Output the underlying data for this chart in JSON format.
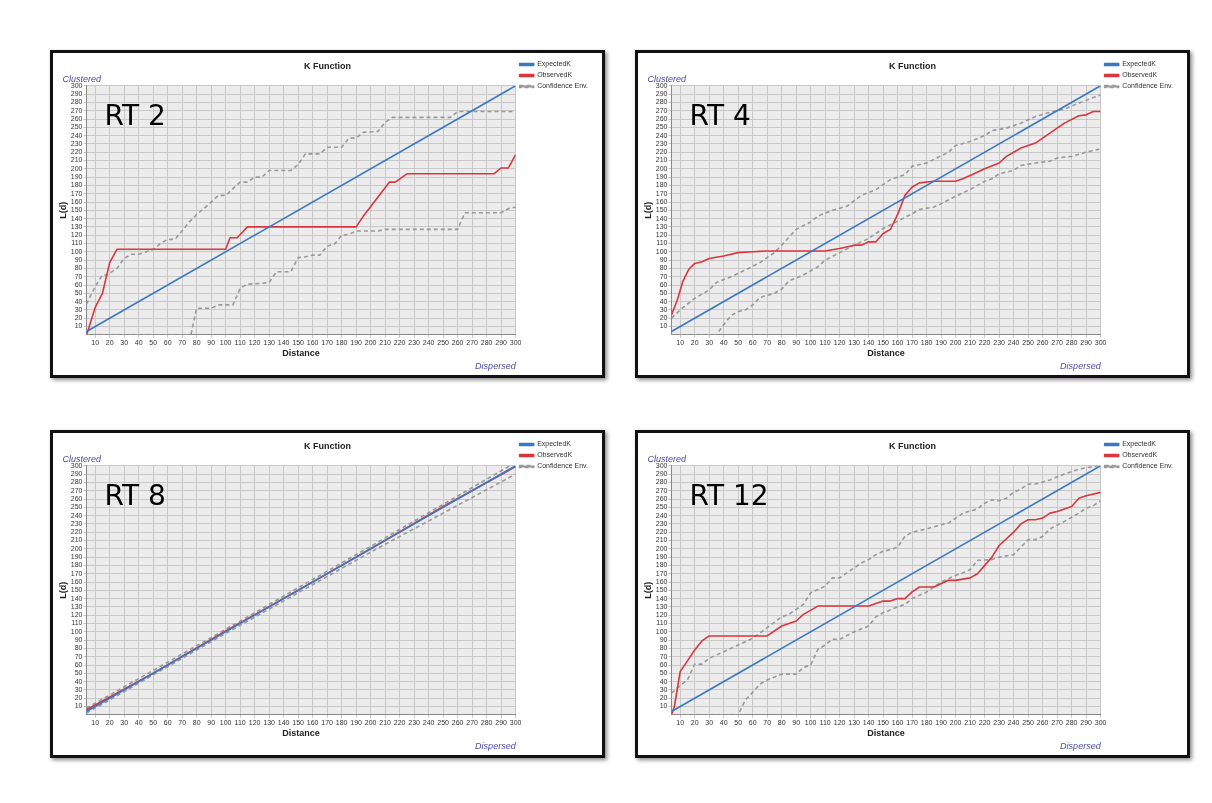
{
  "chart_data": [
    {
      "type": "line",
      "title": "K Function",
      "xlabel": "Distance",
      "ylabel": "L(d)",
      "annotations": [
        "Clustered",
        "Dispersed",
        "RT 2"
      ],
      "xlim": [
        4,
        300
      ],
      "ylim": [
        0,
        300
      ],
      "xticks": [
        10,
        20,
        30,
        40,
        50,
        60,
        70,
        80,
        90,
        100,
        110,
        120,
        130,
        140,
        150,
        160,
        170,
        180,
        190,
        200,
        210,
        220,
        230,
        240,
        250,
        260,
        270,
        280,
        290,
        300
      ],
      "yticks": [
        10,
        20,
        30,
        40,
        50,
        60,
        70,
        80,
        90,
        100,
        110,
        120,
        130,
        140,
        150,
        160,
        170,
        180,
        190,
        200,
        210,
        220,
        230,
        240,
        250,
        260,
        270,
        280,
        290,
        300
      ],
      "grid": true,
      "legend": "top right",
      "series": [
        {
          "name": "ExpectedK",
          "color": "#3b78c4",
          "x": [
            4,
            300
          ],
          "values": [
            4,
            300
          ]
        },
        {
          "name": "ObservedK",
          "color": "#d9363e",
          "x": [
            4,
            5,
            10,
            15,
            20,
            25,
            100,
            103,
            108,
            115,
            190,
            195,
            213,
            217,
            225,
            285,
            290,
            295,
            300
          ],
          "values": [
            0,
            5,
            33,
            50,
            87,
            103,
            103,
            117,
            117,
            130,
            130,
            143,
            184,
            184,
            194,
            194,
            201,
            201,
            217
          ]
        },
        {
          "name": "Confidence Env.",
          "color": "#999999",
          "line_style": "dashed",
          "x": [
            4,
            10,
            15,
            18,
            25,
            30,
            35,
            40,
            50,
            55,
            60,
            65,
            75,
            80,
            85,
            95,
            100,
            110,
            115,
            120,
            125,
            130,
            145,
            150,
            155,
            165,
            170,
            180,
            185,
            190,
            195,
            205,
            210,
            215,
            255,
            260,
            300
          ],
          "values": [
            37,
            58,
            72,
            72,
            80,
            92,
            97,
            97,
            103,
            110,
            115,
            115,
            136,
            145,
            152,
            168,
            168,
            184,
            184,
            190,
            190,
            198,
            198,
            205,
            218,
            218,
            226,
            226,
            237,
            237,
            244,
            245,
            256,
            262,
            262,
            269,
            269
          ]
        },
        {
          "color": "#999999",
          "line_style": "dashed",
          "x": [
            4,
            76,
            80,
            90,
            95,
            105,
            110,
            115,
            125,
            130,
            135,
            145,
            150,
            155,
            160,
            165,
            170,
            175,
            180,
            185,
            190,
            205,
            210,
            260,
            265,
            290,
            295,
            300
          ],
          "values": [
            0,
            0,
            32,
            32,
            36,
            36,
            56,
            61,
            62,
            63,
            76,
            76,
            93,
            94,
            96,
            96,
            107,
            109,
            120,
            121,
            125,
            125,
            127,
            127,
            147,
            147,
            152,
            154
          ]
        }
      ]
    },
    {
      "type": "line",
      "title": "K Function",
      "xlabel": "Distance",
      "ylabel": "L(d)",
      "annotations": [
        "Clustered",
        "Dispersed",
        "RT 4"
      ],
      "xlim": [
        4,
        300
      ],
      "ylim": [
        0,
        300
      ],
      "xticks": [
        10,
        20,
        30,
        40,
        50,
        60,
        70,
        80,
        90,
        100,
        110,
        120,
        130,
        140,
        150,
        160,
        170,
        180,
        190,
        200,
        210,
        220,
        230,
        240,
        250,
        260,
        270,
        280,
        290,
        300
      ],
      "yticks": [
        10,
        20,
        30,
        40,
        50,
        60,
        70,
        80,
        90,
        100,
        110,
        120,
        130,
        140,
        150,
        160,
        170,
        180,
        190,
        200,
        210,
        220,
        230,
        240,
        250,
        260,
        270,
        280,
        290,
        300
      ],
      "grid": true,
      "legend": "top right",
      "series": [
        {
          "name": "ExpectedK",
          "color": "#3b78c4",
          "x": [
            4,
            300
          ],
          "values": [
            4,
            300
          ]
        },
        {
          "name": "ObservedK",
          "color": "#d9363e",
          "x": [
            4,
            8,
            12,
            16,
            20,
            25,
            30,
            40,
            50,
            60,
            70,
            100,
            110,
            120,
            130,
            135,
            140,
            145,
            150,
            155,
            160,
            165,
            170,
            175,
            185,
            200,
            205,
            210,
            220,
            230,
            235,
            245,
            255,
            265,
            275,
            285,
            290,
            295,
            300
          ],
          "values": [
            24,
            42,
            65,
            79,
            86,
            88,
            92,
            95,
            99,
            100,
            101,
            101,
            101,
            104,
            108,
            108,
            112,
            112,
            122,
            127,
            145,
            168,
            178,
            183,
            185,
            185,
            188,
            192,
            200,
            207,
            215,
            225,
            231,
            243,
            255,
            264,
            265,
            269,
            269
          ]
        },
        {
          "name": "Confidence Env.",
          "color": "#999999",
          "line_style": "dashed",
          "x": [
            4,
            10,
            20,
            30,
            35,
            45,
            55,
            65,
            75,
            80,
            90,
            100,
            105,
            115,
            125,
            135,
            145,
            155,
            165,
            170,
            180,
            195,
            200,
            210,
            220,
            225,
            235,
            245,
            255,
            265,
            275,
            285,
            295,
            300
          ],
          "values": [
            20,
            30,
            44,
            54,
            63,
            70,
            78,
            87,
            99,
            108,
            127,
            136,
            143,
            150,
            155,
            168,
            175,
            187,
            193,
            203,
            207,
            220,
            228,
            233,
            240,
            246,
            249,
            255,
            263,
            268,
            272,
            279,
            286,
            289
          ]
        },
        {
          "color": "#999999",
          "line_style": "dashed",
          "x": [
            4,
            35,
            40,
            45,
            50,
            55,
            60,
            65,
            75,
            80,
            85,
            95,
            105,
            110,
            120,
            130,
            140,
            150,
            160,
            170,
            175,
            185,
            190,
            200,
            210,
            220,
            225,
            230,
            240,
            245,
            255,
            265,
            270,
            280,
            290,
            300
          ],
          "values": [
            0,
            0,
            12,
            23,
            28,
            30,
            36,
            45,
            50,
            55,
            65,
            72,
            82,
            90,
            99,
            108,
            116,
            128,
            137,
            146,
            151,
            154,
            158,
            167,
            175,
            185,
            188,
            194,
            198,
            204,
            207,
            209,
            213,
            215,
            220,
            224
          ]
        }
      ]
    },
    {
      "type": "line",
      "title": "K Function",
      "xlabel": "Distance",
      "ylabel": "L(d)",
      "annotations": [
        "Clustered",
        "Dispersed",
        "RT 8"
      ],
      "xlim": [
        4,
        300
      ],
      "ylim": [
        0,
        300
      ],
      "xticks": [
        10,
        20,
        30,
        40,
        50,
        60,
        70,
        80,
        90,
        100,
        110,
        120,
        130,
        140,
        150,
        160,
        170,
        180,
        190,
        200,
        210,
        220,
        230,
        240,
        250,
        260,
        270,
        280,
        290,
        300
      ],
      "yticks": [
        10,
        20,
        30,
        40,
        50,
        60,
        70,
        80,
        90,
        100,
        110,
        120,
        130,
        140,
        150,
        160,
        170,
        180,
        190,
        200,
        210,
        220,
        230,
        240,
        250,
        260,
        270,
        280,
        290,
        300
      ],
      "grid": true,
      "legend": "top right",
      "series": [
        {
          "name": "ExpectedK",
          "color": "#3b78c4",
          "x": [
            4,
            300
          ],
          "values": [
            4,
            300
          ]
        },
        {
          "name": "ObservedK",
          "color": "#d9363e",
          "x": [
            4,
            50,
            100,
            150,
            200,
            250,
            300
          ],
          "values": [
            6,
            50,
            101,
            150,
            200,
            251,
            299
          ]
        },
        {
          "name": "Confidence Env.",
          "color": "#999999",
          "line_style": "dashed",
          "x": [
            4,
            100,
            200,
            296
          ],
          "values": [
            8,
            103,
            203,
            300
          ]
        },
        {
          "color": "#999999",
          "line_style": "dashed",
          "x": [
            4,
            100,
            200,
            250,
            300
          ],
          "values": [
            2,
            98,
            196,
            243,
            290
          ]
        }
      ]
    },
    {
      "type": "line",
      "title": "K Function",
      "xlabel": "Distance",
      "ylabel": "L(d)",
      "annotations": [
        "Clustered",
        "Dispersed",
        "RT 12"
      ],
      "xlim": [
        4,
        300
      ],
      "ylim": [
        0,
        300
      ],
      "xticks": [
        10,
        20,
        30,
        40,
        50,
        60,
        70,
        80,
        90,
        100,
        110,
        120,
        130,
        140,
        150,
        160,
        170,
        180,
        190,
        200,
        210,
        220,
        230,
        240,
        250,
        260,
        270,
        280,
        290,
        300
      ],
      "yticks": [
        10,
        20,
        30,
        40,
        50,
        60,
        70,
        80,
        90,
        100,
        110,
        120,
        130,
        140,
        150,
        160,
        170,
        180,
        190,
        200,
        210,
        220,
        230,
        240,
        250,
        260,
        270,
        280,
        290,
        300
      ],
      "grid": true,
      "legend": "top right",
      "series": [
        {
          "name": "ExpectedK",
          "color": "#3b78c4",
          "x": [
            4,
            300
          ],
          "values": [
            4,
            300
          ]
        },
        {
          "name": "ObservedK",
          "color": "#d9363e",
          "x": [
            4,
            6,
            10,
            15,
            20,
            25,
            30,
            70,
            80,
            90,
            95,
            105,
            140,
            150,
            155,
            160,
            165,
            170,
            175,
            185,
            195,
            200,
            210,
            215,
            225,
            230,
            240,
            245,
            250,
            255,
            260,
            265,
            270,
            280,
            285,
            290,
            300
          ],
          "values": [
            0,
            10,
            52,
            65,
            78,
            89,
            95,
            95,
            107,
            113,
            121,
            131,
            131,
            137,
            137,
            140,
            140,
            148,
            154,
            154,
            162,
            162,
            165,
            170,
            190,
            204,
            220,
            230,
            235,
            235,
            237,
            243,
            245,
            251,
            261,
            264,
            268
          ]
        },
        {
          "name": "Confidence Env.",
          "color": "#999999",
          "line_style": "dashed",
          "x": [
            4,
            10,
            15,
            20,
            25,
            30,
            40,
            50,
            60,
            70,
            80,
            85,
            95,
            100,
            110,
            115,
            120,
            130,
            135,
            140,
            145,
            150,
            155,
            160,
            165,
            170,
            180,
            190,
            195,
            200,
            205,
            215,
            220,
            225,
            230,
            235,
            240,
            245,
            250,
            255,
            265,
            275,
            285,
            298
          ],
          "values": [
            26,
            35,
            42,
            61,
            61,
            68,
            76,
            84,
            92,
            105,
            118,
            121,
            133,
            147,
            155,
            165,
            165,
            177,
            183,
            187,
            193,
            197,
            199,
            202,
            215,
            220,
            224,
            229,
            231,
            237,
            243,
            248,
            255,
            259,
            258,
            261,
            268,
            272,
            278,
            278,
            283,
            290,
            296,
            300
          ]
        },
        {
          "color": "#999999",
          "line_style": "dashed",
          "x": [
            4,
            50,
            55,
            60,
            65,
            70,
            80,
            90,
            95,
            100,
            105,
            110,
            115,
            120,
            130,
            140,
            145,
            150,
            160,
            165,
            170,
            180,
            190,
            200,
            205,
            210,
            215,
            225,
            230,
            240,
            245,
            250,
            255,
            260,
            265,
            275,
            280,
            285,
            290,
            295,
            300
          ],
          "values": [
            0,
            0,
            18,
            27,
            37,
            42,
            49,
            49,
            57,
            60,
            79,
            84,
            91,
            91,
            100,
            107,
            118,
            123,
            130,
            133,
            140,
            148,
            160,
            168,
            171,
            175,
            186,
            187,
            190,
            193,
            202,
            211,
            211,
            215,
            224,
            233,
            238,
            243,
            249,
            252,
            258
          ]
        }
      ]
    }
  ]
}
